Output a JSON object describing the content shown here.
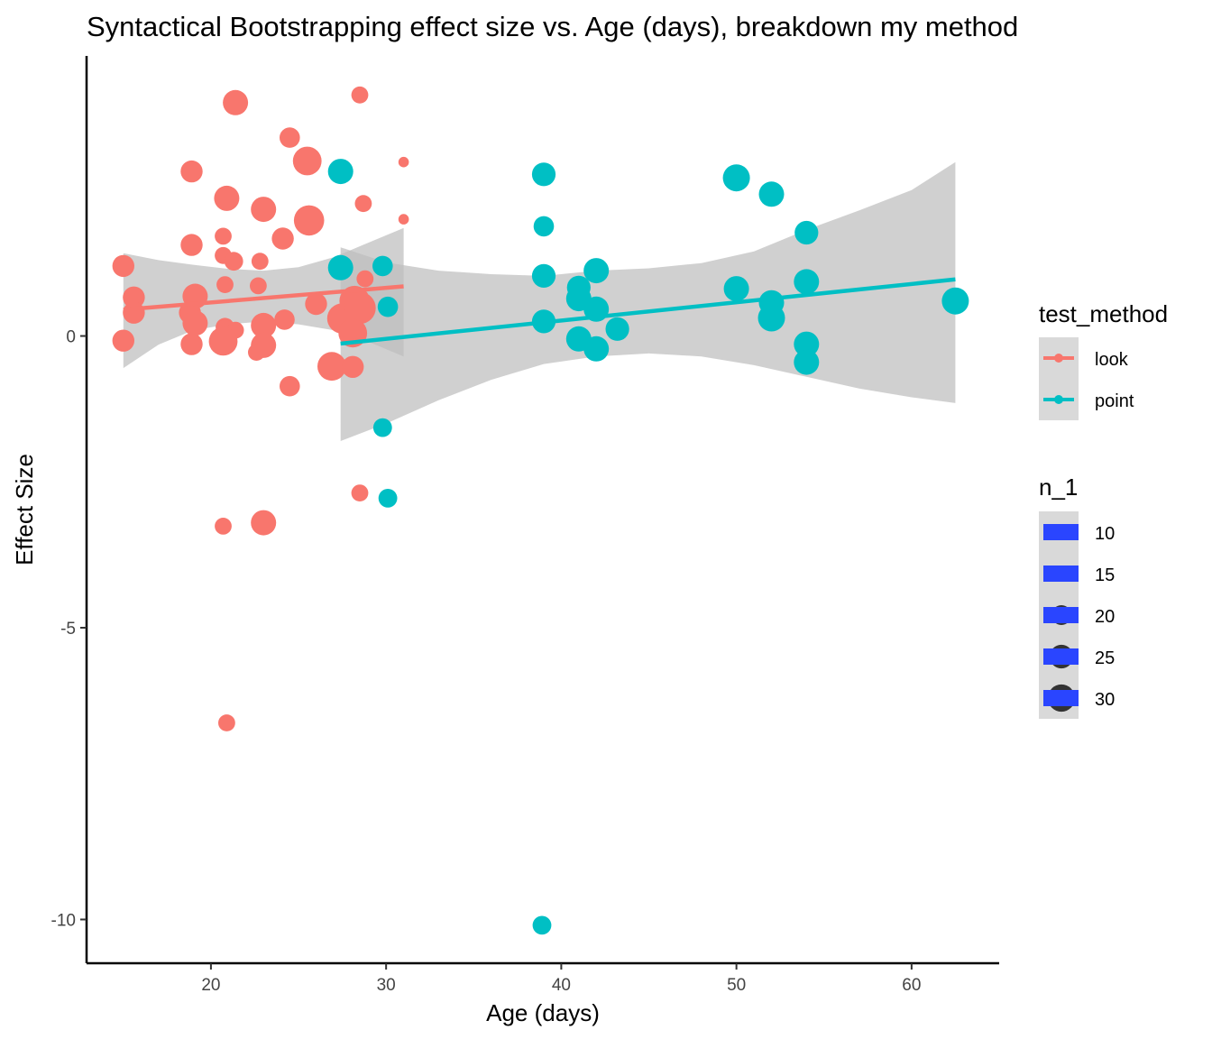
{
  "chart_data": {
    "type": "scatter",
    "title": "Syntactical Bootstrapping effect size vs. Age (days), breakdown my method",
    "xlabel": "Age (days)",
    "ylabel": "Effect Size",
    "xlim": [
      12.9,
      65
    ],
    "ylim": [
      -10.75,
      4.8
    ],
    "x_ticks": [
      20,
      30,
      40,
      50,
      60
    ],
    "y_ticks": [
      -10,
      -5,
      0
    ],
    "y_tick_labels": [
      "-10",
      "-5",
      "0"
    ],
    "grid": false,
    "legend_position": "right",
    "colors": {
      "look": "#F8766D",
      "point": "#00BFC4",
      "ribbon": "#BEBEBE",
      "size_key": "#2A45FF"
    },
    "color_legend": {
      "title": "test_method",
      "entries": [
        "look",
        "point"
      ]
    },
    "size_legend": {
      "title": "n_1",
      "entries": [
        "10",
        "15",
        "20",
        "25",
        "30"
      ]
    },
    "series": [
      {
        "name": "look",
        "points": [
          {
            "x": 21.4,
            "y": 4.0,
            "n": 24
          },
          {
            "x": 28.5,
            "y": 4.13,
            "n": 14
          },
          {
            "x": 24.5,
            "y": 3.4,
            "n": 18
          },
          {
            "x": 25.5,
            "y": 3.0,
            "n": 28
          },
          {
            "x": 31.0,
            "y": 2.98,
            "n": 6
          },
          {
            "x": 18.9,
            "y": 2.82,
            "n": 20
          },
          {
            "x": 20.9,
            "y": 2.36,
            "n": 24
          },
          {
            "x": 23.0,
            "y": 2.17,
            "n": 24
          },
          {
            "x": 28.7,
            "y": 2.27,
            "n": 14
          },
          {
            "x": 25.6,
            "y": 1.98,
            "n": 30
          },
          {
            "x": 31.0,
            "y": 2.0,
            "n": 6
          },
          {
            "x": 20.7,
            "y": 1.71,
            "n": 14
          },
          {
            "x": 24.1,
            "y": 1.67,
            "n": 20
          },
          {
            "x": 18.9,
            "y": 1.56,
            "n": 20
          },
          {
            "x": 20.7,
            "y": 1.38,
            "n": 14
          },
          {
            "x": 21.3,
            "y": 1.28,
            "n": 16
          },
          {
            "x": 22.8,
            "y": 1.28,
            "n": 14
          },
          {
            "x": 15.0,
            "y": 1.2,
            "n": 20
          },
          {
            "x": 28.8,
            "y": 0.98,
            "n": 14
          },
          {
            "x": 20.8,
            "y": 0.88,
            "n": 14
          },
          {
            "x": 22.7,
            "y": 0.86,
            "n": 14
          },
          {
            "x": 15.6,
            "y": 0.66,
            "n": 20
          },
          {
            "x": 19.1,
            "y": 0.68,
            "n": 24
          },
          {
            "x": 26.0,
            "y": 0.55,
            "n": 20
          },
          {
            "x": 28.2,
            "y": 0.6,
            "n": 30
          },
          {
            "x": 15.6,
            "y": 0.4,
            "n": 20
          },
          {
            "x": 18.8,
            "y": 0.4,
            "n": 20
          },
          {
            "x": 19.1,
            "y": 0.22,
            "n": 24
          },
          {
            "x": 24.2,
            "y": 0.28,
            "n": 18
          },
          {
            "x": 23.0,
            "y": 0.18,
            "n": 24
          },
          {
            "x": 27.5,
            "y": 0.3,
            "n": 30
          },
          {
            "x": 28.5,
            "y": 0.48,
            "n": 32
          },
          {
            "x": 20.8,
            "y": 0.15,
            "n": 16
          },
          {
            "x": 21.4,
            "y": 0.1,
            "n": 14
          },
          {
            "x": 28.1,
            "y": 0.05,
            "n": 28
          },
          {
            "x": 15.0,
            "y": -0.08,
            "n": 20
          },
          {
            "x": 18.9,
            "y": -0.14,
            "n": 20
          },
          {
            "x": 20.7,
            "y": -0.09,
            "n": 28
          },
          {
            "x": 23.0,
            "y": -0.16,
            "n": 24
          },
          {
            "x": 22.6,
            "y": -0.28,
            "n": 14
          },
          {
            "x": 26.9,
            "y": -0.52,
            "n": 28
          },
          {
            "x": 28.1,
            "y": -0.53,
            "n": 20
          },
          {
            "x": 24.5,
            "y": -0.86,
            "n": 18
          },
          {
            "x": 28.5,
            "y": -2.69,
            "n": 14
          },
          {
            "x": 20.7,
            "y": -3.26,
            "n": 14
          },
          {
            "x": 23.0,
            "y": -3.2,
            "n": 24
          },
          {
            "x": 20.9,
            "y": -6.63,
            "n": 14
          }
        ],
        "trend": {
          "x": [
            15.0,
            31.0
          ],
          "y": [
            0.45,
            0.85
          ]
        }
      },
      {
        "name": "point",
        "points": [
          {
            "x": 27.4,
            "y": 2.82,
            "n": 24
          },
          {
            "x": 39.0,
            "y": 2.77,
            "n": 22
          },
          {
            "x": 50.0,
            "y": 2.71,
            "n": 26
          },
          {
            "x": 52.0,
            "y": 2.43,
            "n": 24
          },
          {
            "x": 39.0,
            "y": 1.88,
            "n": 18
          },
          {
            "x": 54.0,
            "y": 1.77,
            "n": 22
          },
          {
            "x": 27.4,
            "y": 1.17,
            "n": 24
          },
          {
            "x": 29.8,
            "y": 1.2,
            "n": 18
          },
          {
            "x": 42.0,
            "y": 1.12,
            "n": 24
          },
          {
            "x": 39.0,
            "y": 1.03,
            "n": 22
          },
          {
            "x": 54.0,
            "y": 0.93,
            "n": 24
          },
          {
            "x": 41.0,
            "y": 0.83,
            "n": 22
          },
          {
            "x": 50.0,
            "y": 0.81,
            "n": 24
          },
          {
            "x": 41.0,
            "y": 0.64,
            "n": 24
          },
          {
            "x": 52.0,
            "y": 0.57,
            "n": 24
          },
          {
            "x": 62.5,
            "y": 0.6,
            "n": 26
          },
          {
            "x": 30.1,
            "y": 0.5,
            "n": 18
          },
          {
            "x": 42.0,
            "y": 0.46,
            "n": 24
          },
          {
            "x": 52.0,
            "y": 0.31,
            "n": 26
          },
          {
            "x": 39.0,
            "y": 0.25,
            "n": 22
          },
          {
            "x": 43.2,
            "y": 0.12,
            "n": 22
          },
          {
            "x": 41.0,
            "y": -0.05,
            "n": 24
          },
          {
            "x": 42.0,
            "y": -0.22,
            "n": 24
          },
          {
            "x": 54.0,
            "y": -0.14,
            "n": 24
          },
          {
            "x": 54.0,
            "y": -0.45,
            "n": 24
          },
          {
            "x": 29.8,
            "y": -1.57,
            "n": 16
          },
          {
            "x": 30.1,
            "y": -2.78,
            "n": 16
          },
          {
            "x": 38.9,
            "y": -10.1,
            "n": 16
          }
        ],
        "trend": {
          "x": [
            27.4,
            62.5
          ],
          "y": [
            -0.13,
            0.97
          ]
        }
      }
    ],
    "ribbons": [
      {
        "name": "look",
        "x": [
          15.0,
          17.0,
          19.0,
          21.0,
          23.0,
          25.0,
          27.0,
          29.0,
          31.0
        ],
        "lo": [
          -0.55,
          -0.15,
          0.1,
          0.2,
          0.25,
          0.2,
          0.1,
          -0.1,
          -0.35
        ],
        "hi": [
          1.42,
          1.3,
          1.22,
          1.15,
          1.12,
          1.18,
          1.35,
          1.6,
          1.85
        ]
      },
      {
        "name": "point",
        "x": [
          27.4,
          30.0,
          33.0,
          36.0,
          39.0,
          42.0,
          45.0,
          48.0,
          51.0,
          54.0,
          57.0,
          60.0,
          62.5
        ],
        "lo": [
          -1.8,
          -1.5,
          -1.1,
          -0.75,
          -0.48,
          -0.35,
          -0.3,
          -0.35,
          -0.5,
          -0.7,
          -0.9,
          -1.05,
          -1.15
        ],
        "hi": [
          1.52,
          1.26,
          1.12,
          1.06,
          1.03,
          1.12,
          1.16,
          1.25,
          1.45,
          1.82,
          2.15,
          2.5,
          2.98
        ]
      }
    ]
  }
}
